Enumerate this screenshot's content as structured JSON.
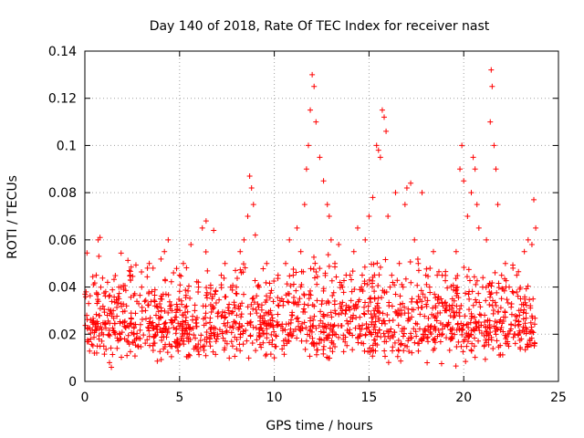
{
  "chart_data": {
    "type": "scatter",
    "title": "Day 140 of 2018, Rate Of TEC Index for receiver nast",
    "xlabel": "GPS time / hours",
    "ylabel": "ROTI / TECUs",
    "xlim": [
      0,
      25
    ],
    "ylim": [
      0,
      0.14
    ],
    "x_ticks": [
      0,
      5,
      10,
      15,
      20,
      25
    ],
    "x_tick_labels": [
      "0",
      "5",
      "10",
      "15",
      "20",
      "25"
    ],
    "y_ticks": [
      0,
      0.02,
      0.04,
      0.06,
      0.08,
      0.1,
      0.12,
      0.14
    ],
    "y_tick_labels": [
      "0",
      "0.02",
      "0.04",
      "0.06",
      "0.08",
      "0.1",
      "0.12",
      "0.14"
    ],
    "grid": true,
    "marker": "+",
    "series_color": "#ff0000",
    "series": [
      {
        "name": "ROTI",
        "points": [
          [
            0.1,
            0.028
          ],
          [
            0.2,
            0.033
          ],
          [
            0.3,
            0.018
          ],
          [
            0.4,
            0.025
          ],
          [
            0.5,
            0.012
          ],
          [
            0.6,
            0.045
          ],
          [
            0.7,
            0.06
          ],
          [
            0.8,
            0.061
          ],
          [
            0.9,
            0.022
          ],
          [
            1.0,
            0.015
          ],
          [
            1.1,
            0.038
          ],
          [
            1.2,
            0.042
          ],
          [
            1.3,
            0.008
          ],
          [
            1.4,
            0.006
          ],
          [
            1.5,
            0.03
          ],
          [
            1.6,
            0.02
          ],
          [
            1.7,
            0.014
          ],
          [
            1.8,
            0.035
          ],
          [
            1.9,
            0.04
          ],
          [
            2.0,
            0.025
          ],
          [
            2.1,
            0.018
          ],
          [
            2.2,
            0.032
          ],
          [
            2.4,
            0.045
          ],
          [
            2.6,
            0.02
          ],
          [
            2.8,
            0.015
          ],
          [
            3.0,
            0.04
          ],
          [
            3.2,
            0.03
          ],
          [
            3.4,
            0.05
          ],
          [
            3.6,
            0.048
          ],
          [
            3.8,
            0.022
          ],
          [
            4.0,
            0.035
          ],
          [
            4.2,
            0.055
          ],
          [
            4.4,
            0.06
          ],
          [
            4.6,
            0.03
          ],
          [
            4.8,
            0.015
          ],
          [
            5.0,
            0.045
          ],
          [
            5.2,
            0.05
          ],
          [
            5.4,
            0.02
          ],
          [
            5.6,
            0.058
          ],
          [
            5.8,
            0.03
          ],
          [
            6.0,
            0.04
          ],
          [
            6.2,
            0.065
          ],
          [
            6.4,
            0.068
          ],
          [
            6.6,
            0.025
          ],
          [
            6.8,
            0.064
          ],
          [
            7.0,
            0.02
          ],
          [
            7.2,
            0.045
          ],
          [
            7.4,
            0.05
          ],
          [
            7.6,
            0.03
          ],
          [
            7.8,
            0.015
          ],
          [
            8.0,
            0.04
          ],
          [
            8.2,
            0.055
          ],
          [
            8.4,
            0.06
          ],
          [
            8.6,
            0.07
          ],
          [
            8.7,
            0.087
          ],
          [
            8.8,
            0.082
          ],
          [
            8.9,
            0.075
          ],
          [
            9.0,
            0.062
          ],
          [
            9.2,
            0.04
          ],
          [
            9.4,
            0.025
          ],
          [
            9.6,
            0.05
          ],
          [
            9.8,
            0.03
          ],
          [
            10.0,
            0.01
          ],
          [
            10.2,
            0.045
          ],
          [
            10.4,
            0.035
          ],
          [
            10.6,
            0.05
          ],
          [
            10.8,
            0.06
          ],
          [
            11.0,
            0.045
          ],
          [
            11.2,
            0.065
          ],
          [
            11.4,
            0.055
          ],
          [
            11.6,
            0.075
          ],
          [
            11.7,
            0.09
          ],
          [
            11.8,
            0.1
          ],
          [
            11.9,
            0.115
          ],
          [
            12.0,
            0.13
          ],
          [
            12.1,
            0.125
          ],
          [
            12.2,
            0.11
          ],
          [
            12.4,
            0.095
          ],
          [
            12.6,
            0.085
          ],
          [
            12.8,
            0.075
          ],
          [
            12.9,
            0.07
          ],
          [
            13.0,
            0.06
          ],
          [
            13.2,
            0.05
          ],
          [
            13.4,
            0.058
          ],
          [
            13.6,
            0.04
          ],
          [
            13.8,
            0.03
          ],
          [
            14.0,
            0.045
          ],
          [
            14.2,
            0.055
          ],
          [
            14.4,
            0.065
          ],
          [
            14.6,
            0.04
          ],
          [
            14.8,
            0.06
          ],
          [
            15.0,
            0.07
          ],
          [
            15.2,
            0.078
          ],
          [
            15.4,
            0.1
          ],
          [
            15.5,
            0.098
          ],
          [
            15.6,
            0.095
          ],
          [
            15.7,
            0.115
          ],
          [
            15.8,
            0.112
          ],
          [
            15.9,
            0.106
          ],
          [
            16.0,
            0.07
          ],
          [
            16.2,
            0.045
          ],
          [
            16.4,
            0.08
          ],
          [
            16.6,
            0.05
          ],
          [
            16.8,
            0.04
          ],
          [
            16.9,
            0.075
          ],
          [
            17.0,
            0.082
          ],
          [
            17.2,
            0.084
          ],
          [
            17.4,
            0.06
          ],
          [
            17.6,
            0.05
          ],
          [
            17.8,
            0.08
          ],
          [
            18.0,
            0.045
          ],
          [
            18.2,
            0.04
          ],
          [
            18.4,
            0.055
          ],
          [
            18.6,
            0.045
          ],
          [
            18.8,
            0.035
          ],
          [
            19.0,
            0.03
          ],
          [
            19.2,
            0.025
          ],
          [
            19.4,
            0.035
          ],
          [
            19.6,
            0.055
          ],
          [
            19.8,
            0.09
          ],
          [
            19.9,
            0.1
          ],
          [
            20.0,
            0.085
          ],
          [
            20.2,
            0.07
          ],
          [
            20.4,
            0.08
          ],
          [
            20.5,
            0.095
          ],
          [
            20.6,
            0.09
          ],
          [
            20.7,
            0.075
          ],
          [
            20.8,
            0.065
          ],
          [
            21.0,
            0.04
          ],
          [
            21.2,
            0.06
          ],
          [
            21.4,
            0.11
          ],
          [
            21.45,
            0.132
          ],
          [
            21.5,
            0.125
          ],
          [
            21.6,
            0.1
          ],
          [
            21.7,
            0.09
          ],
          [
            21.8,
            0.075
          ],
          [
            22.0,
            0.045
          ],
          [
            22.2,
            0.05
          ],
          [
            22.4,
            0.04
          ],
          [
            22.6,
            0.048
          ],
          [
            22.8,
            0.045
          ],
          [
            23.0,
            0.035
          ],
          [
            23.2,
            0.055
          ],
          [
            23.4,
            0.06
          ],
          [
            23.6,
            0.058
          ],
          [
            23.7,
            0.077
          ],
          [
            23.8,
            0.065
          ]
        ]
      }
    ],
    "background_density": {
      "description": "dense band of ROTI values between about 0.005 and 0.06 across the whole day",
      "x_start": 0.0,
      "x_end": 23.8,
      "count": 1500,
      "y_low": 0.004,
      "y_mode": 0.025,
      "y_high": 0.06
    }
  }
}
